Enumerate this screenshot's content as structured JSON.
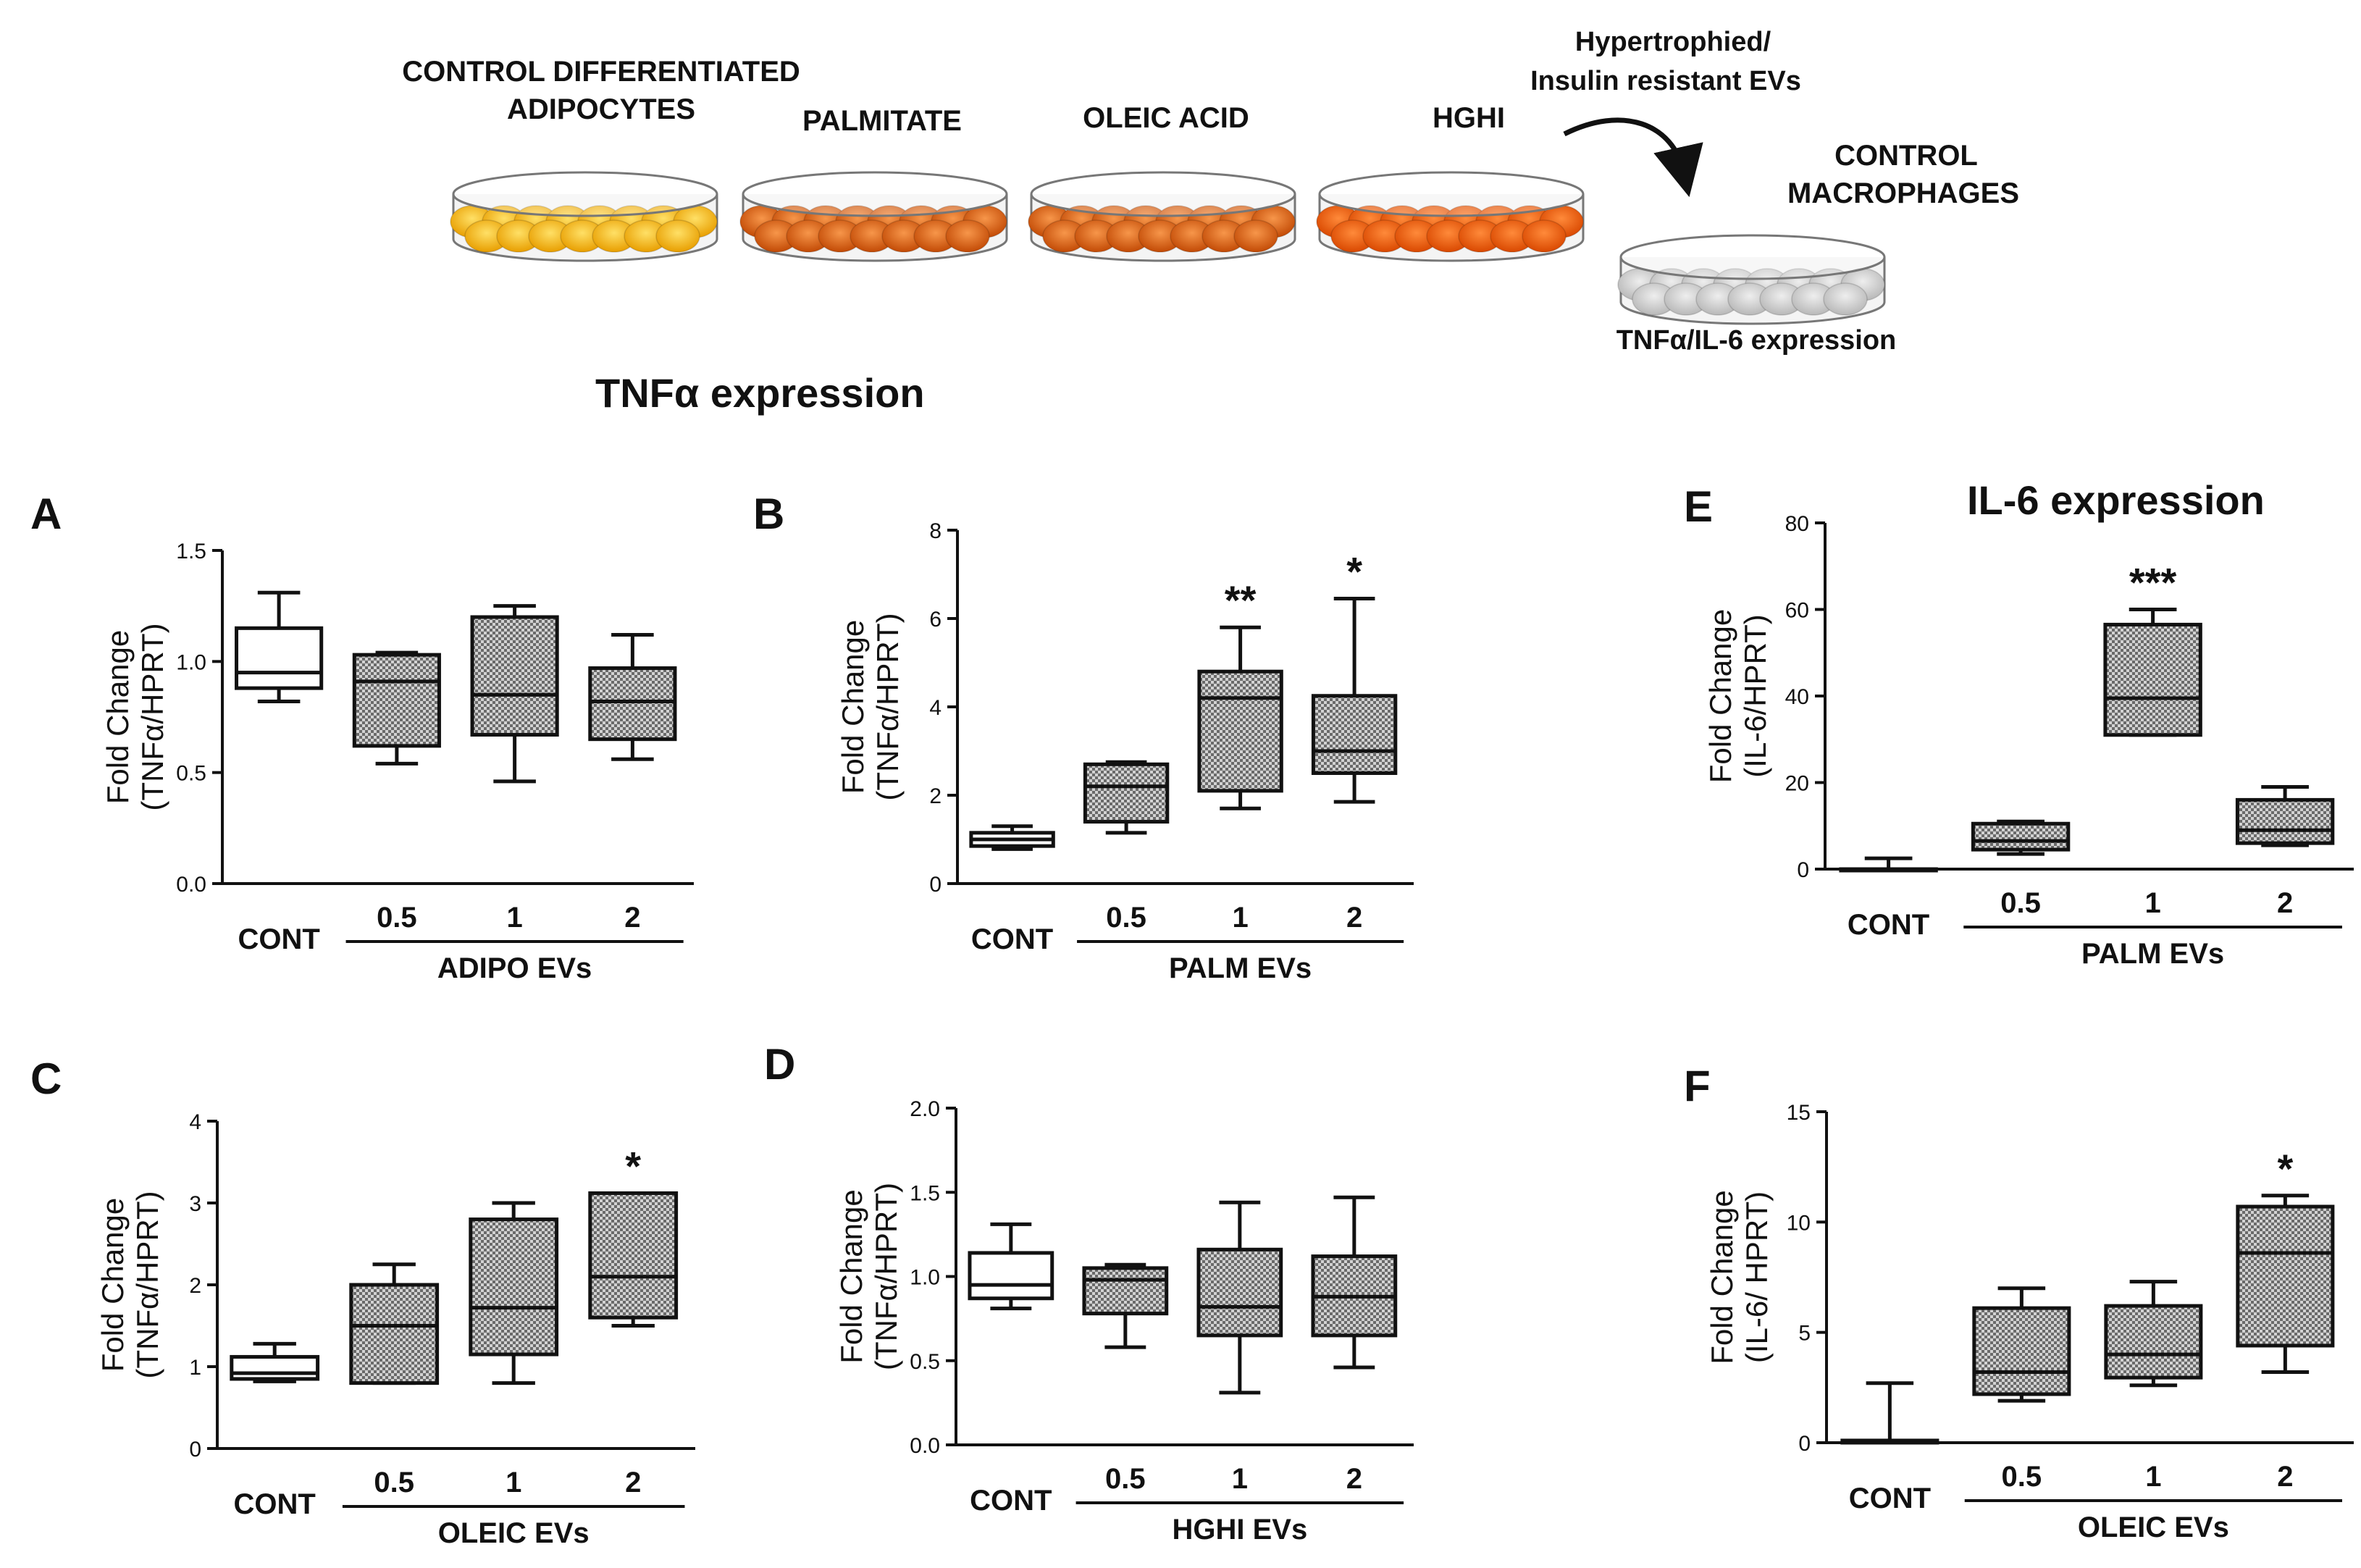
{
  "header": {
    "adipocytes_label_line1": "CONTROL DIFFERENTIATED",
    "adipocytes_label_line2": "ADIPOCYTES",
    "palmitate_label": "PALMITATE",
    "oleic_label": "OLEIC ACID",
    "hghi_label": "HGHI",
    "evs_label_line1": "Hypertrophied/",
    "evs_label_line2": "Insulin resistant EVs",
    "macrophages_label_line1": "CONTROL",
    "macrophages_label_line2": "MACROPHAGES",
    "readout_label": "TNFα/IL-6 expression",
    "dish_colors": {
      "control": "#f7b500",
      "palmitate": "#e8620c",
      "oleic": "#e8620c",
      "hghi": "#f26a0a",
      "macrophage": "#cfcfcf"
    }
  },
  "sections": {
    "tnf_title": "TNFα expression",
    "il6_title": "IL-6 expression"
  },
  "chart_data": [
    {
      "id": "A",
      "panel_letter": "A",
      "type": "box",
      "ylabel_line1": "Fold Change",
      "ylabel_line2": "(TNFα/HPRT)",
      "ylim": [
        0,
        1.5
      ],
      "yticks": [
        "0.0",
        "0.5",
        "1.0",
        "1.5"
      ],
      "ytick_values": [
        0,
        0.5,
        1.0,
        1.5
      ],
      "categories": [
        "CONT",
        "0.5",
        "1",
        "2"
      ],
      "group_label": "ADIPO EVs",
      "boxes": [
        {
          "category": "CONT",
          "min": 0.82,
          "q1": 0.88,
          "median": 0.95,
          "q3": 1.15,
          "max": 1.31,
          "hatched": false,
          "significance": ""
        },
        {
          "category": "0.5",
          "min": 0.54,
          "q1": 0.62,
          "median": 0.91,
          "q3": 1.03,
          "max": 1.04,
          "hatched": true,
          "significance": ""
        },
        {
          "category": "1",
          "min": 0.46,
          "q1": 0.67,
          "median": 0.85,
          "q3": 1.2,
          "max": 1.25,
          "hatched": true,
          "significance": ""
        },
        {
          "category": "2",
          "min": 0.56,
          "q1": 0.65,
          "median": 0.82,
          "q3": 0.97,
          "max": 1.12,
          "hatched": true,
          "significance": ""
        }
      ]
    },
    {
      "id": "B",
      "panel_letter": "B",
      "type": "box",
      "ylabel_line1": "Fold Change",
      "ylabel_line2": "(TNFα/HPRT)",
      "ylim": [
        0,
        8
      ],
      "yticks": [
        "0",
        "2",
        "4",
        "6",
        "8"
      ],
      "ytick_values": [
        0,
        2,
        4,
        6,
        8
      ],
      "categories": [
        "CONT",
        "0.5",
        "1",
        "2"
      ],
      "group_label": "PALM EVs",
      "boxes": [
        {
          "category": "CONT",
          "min": 0.78,
          "q1": 0.85,
          "median": 1.0,
          "q3": 1.15,
          "max": 1.3,
          "hatched": false,
          "significance": ""
        },
        {
          "category": "0.5",
          "min": 1.15,
          "q1": 1.4,
          "median": 2.2,
          "q3": 2.7,
          "max": 2.75,
          "hatched": true,
          "significance": ""
        },
        {
          "category": "1",
          "min": 1.7,
          "q1": 2.1,
          "median": 4.2,
          "q3": 4.8,
          "max": 5.8,
          "hatched": true,
          "significance": "**"
        },
        {
          "category": "2",
          "min": 1.85,
          "q1": 2.5,
          "median": 3.0,
          "q3": 4.25,
          "max": 6.45,
          "hatched": true,
          "significance": "*"
        }
      ]
    },
    {
      "id": "C",
      "panel_letter": "C",
      "type": "box",
      "ylabel_line1": "Fold Change",
      "ylabel_line2": "(TNFα/HPRT)",
      "ylim": [
        0,
        4
      ],
      "yticks": [
        "0",
        "1",
        "2",
        "3",
        "4"
      ],
      "ytick_values": [
        0,
        1,
        2,
        3,
        4
      ],
      "categories": [
        "CONT",
        "0.5",
        "1",
        "2"
      ],
      "group_label": "OLEIC EVs",
      "boxes": [
        {
          "category": "CONT",
          "min": 0.82,
          "q1": 0.85,
          "median": 0.92,
          "q3": 1.12,
          "max": 1.28,
          "hatched": false,
          "significance": ""
        },
        {
          "category": "0.5",
          "min": 0.8,
          "q1": 0.8,
          "median": 1.5,
          "q3": 2.0,
          "max": 2.25,
          "hatched": true,
          "significance": ""
        },
        {
          "category": "1",
          "min": 0.8,
          "q1": 1.15,
          "median": 1.72,
          "q3": 2.8,
          "max": 3.0,
          "hatched": true,
          "significance": ""
        },
        {
          "category": "2",
          "min": 1.5,
          "q1": 1.6,
          "median": 2.1,
          "q3": 3.12,
          "max": 3.12,
          "hatched": true,
          "significance": "*"
        }
      ]
    },
    {
      "id": "D",
      "panel_letter": "D",
      "type": "box",
      "ylabel_line1": "Fold Change",
      "ylabel_line2": "(TNFα/HPRT)",
      "ylim": [
        0,
        2.0
      ],
      "yticks": [
        "0.0",
        "0.5",
        "1.0",
        "1.5",
        "2.0"
      ],
      "ytick_values": [
        0,
        0.5,
        1.0,
        1.5,
        2.0
      ],
      "categories": [
        "CONT",
        "0.5",
        "1",
        "2"
      ],
      "group_label": "HGHI EVs",
      "boxes": [
        {
          "category": "CONT",
          "min": 0.81,
          "q1": 0.87,
          "median": 0.95,
          "q3": 1.14,
          "max": 1.31,
          "hatched": false,
          "significance": ""
        },
        {
          "category": "0.5",
          "min": 0.58,
          "q1": 0.78,
          "median": 0.98,
          "q3": 1.05,
          "max": 1.07,
          "hatched": true,
          "significance": ""
        },
        {
          "category": "1",
          "min": 0.31,
          "q1": 0.65,
          "median": 0.82,
          "q3": 1.16,
          "max": 1.44,
          "hatched": true,
          "significance": ""
        },
        {
          "category": "2",
          "min": 0.46,
          "q1": 0.65,
          "median": 0.88,
          "q3": 1.12,
          "max": 1.47,
          "hatched": true,
          "significance": ""
        }
      ]
    },
    {
      "id": "E",
      "panel_letter": "E",
      "type": "box",
      "ylabel_line1": "Fold Change",
      "ylabel_line2": "(IL-6/HPRT)",
      "ylim": [
        0,
        80
      ],
      "yticks": [
        "0",
        "20",
        "40",
        "60",
        "80"
      ],
      "ytick_values": [
        0,
        20,
        40,
        60,
        80
      ],
      "categories": [
        "CONT",
        "0.5",
        "1",
        "2"
      ],
      "group_label": "PALM EVs",
      "boxes": [
        {
          "category": "CONT",
          "min": 0,
          "q1": 0,
          "median": 0,
          "q3": 0,
          "max": 2.5,
          "hatched": false,
          "significance": ""
        },
        {
          "category": "0.5",
          "min": 3.5,
          "q1": 4.5,
          "median": 6.5,
          "q3": 10.5,
          "max": 11,
          "hatched": true,
          "significance": ""
        },
        {
          "category": "1",
          "min": 31,
          "q1": 31,
          "median": 39.5,
          "q3": 56.5,
          "max": 60,
          "hatched": true,
          "significance": "***"
        },
        {
          "category": "2",
          "min": 5.5,
          "q1": 6,
          "median": 9,
          "q3": 16,
          "max": 19,
          "hatched": true,
          "significance": ""
        }
      ]
    },
    {
      "id": "F",
      "panel_letter": "F",
      "type": "box",
      "ylabel_line1": "Fold Change",
      "ylabel_line2": "(IL-6/ HPRT)",
      "ylim": [
        0,
        15
      ],
      "yticks": [
        "0",
        "5",
        "10",
        "15"
      ],
      "ytick_values": [
        0,
        5,
        10,
        15
      ],
      "categories": [
        "CONT",
        "0.5",
        "1",
        "2"
      ],
      "group_label": "OLEIC EVs",
      "boxes": [
        {
          "category": "CONT",
          "min": 0,
          "q1": 0,
          "median": 0.05,
          "q3": 0.1,
          "max": 2.7,
          "hatched": false,
          "significance": ""
        },
        {
          "category": "0.5",
          "min": 1.9,
          "q1": 2.2,
          "median": 3.2,
          "q3": 6.1,
          "max": 7.0,
          "hatched": true,
          "significance": ""
        },
        {
          "category": "1",
          "min": 2.6,
          "q1": 2.95,
          "median": 4.0,
          "q3": 6.2,
          "max": 7.3,
          "hatched": true,
          "significance": ""
        },
        {
          "category": "2",
          "min": 3.2,
          "q1": 4.4,
          "median": 8.6,
          "q3": 10.7,
          "max": 11.2,
          "hatched": true,
          "significance": "*"
        }
      ]
    }
  ]
}
